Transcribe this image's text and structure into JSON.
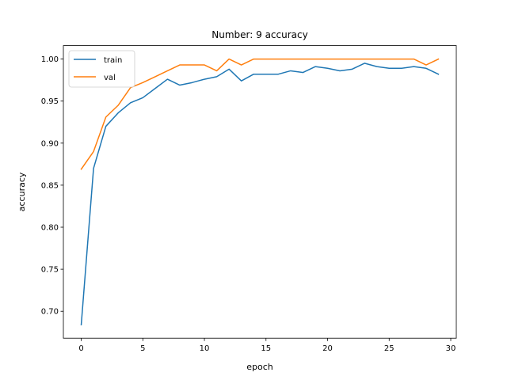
{
  "chart_data": {
    "type": "line",
    "title": "Number: 9 accuracy",
    "xlabel": "epoch",
    "ylabel": "accuracy",
    "xlim": [
      -1.45,
      30.45
    ],
    "ylim": [
      0.668,
      1.016
    ],
    "xticks": [
      0,
      5,
      10,
      15,
      20,
      25,
      30
    ],
    "yticks": [
      0.7,
      0.75,
      0.8,
      0.85,
      0.9,
      0.95,
      1.0
    ],
    "ytick_labels": [
      "0.70",
      "0.75",
      "0.80",
      "0.85",
      "0.90",
      "0.95",
      "1.00"
    ],
    "grid": false,
    "legend_position": "upper-left",
    "x": [
      0,
      1,
      2,
      3,
      4,
      5,
      6,
      7,
      8,
      9,
      10,
      11,
      12,
      13,
      14,
      15,
      16,
      17,
      18,
      19,
      20,
      21,
      22,
      23,
      24,
      25,
      26,
      27,
      28,
      29
    ],
    "series": [
      {
        "name": "train",
        "color": "#1f77b4",
        "values": [
          0.684,
          0.87,
          0.92,
          0.936,
          0.948,
          0.954,
          0.965,
          0.976,
          0.969,
          0.972,
          0.976,
          0.979,
          0.988,
          0.974,
          0.982,
          0.982,
          0.982,
          0.986,
          0.984,
          0.991,
          0.989,
          0.986,
          0.988,
          0.995,
          0.991,
          0.989,
          0.989,
          0.991,
          0.989,
          0.982
        ]
      },
      {
        "name": "val",
        "color": "#ff7f0e",
        "values": [
          0.869,
          0.89,
          0.931,
          0.945,
          0.966,
          0.972,
          0.979,
          0.986,
          0.993,
          0.993,
          0.993,
          0.986,
          1.0,
          0.993,
          1.0,
          1.0,
          1.0,
          1.0,
          1.0,
          1.0,
          1.0,
          1.0,
          1.0,
          1.0,
          1.0,
          1.0,
          1.0,
          1.0,
          0.993,
          1.0
        ]
      }
    ]
  }
}
